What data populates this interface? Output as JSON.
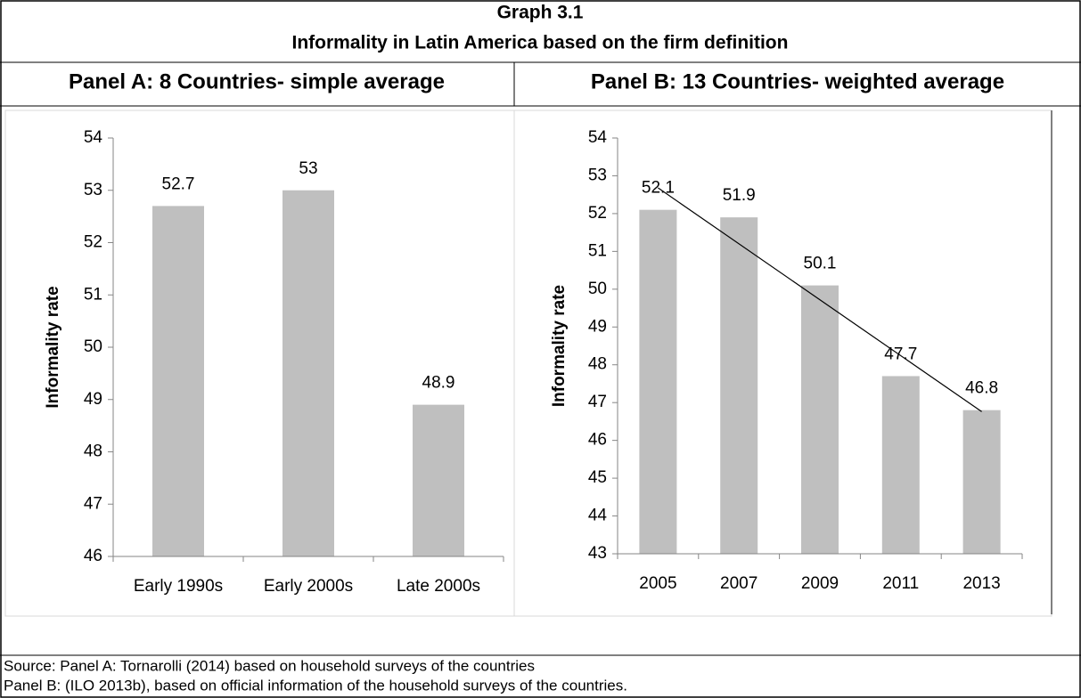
{
  "title": "Graph 3.1",
  "subtitle": "Informality in Latin America based on the firm definition",
  "chart_data": [
    {
      "type": "bar",
      "title": "Panel A: 8 Countries- simple average",
      "ylabel": "Informality rate",
      "categories": [
        "Early 1990s",
        "Early 2000s",
        "Late 2000s"
      ],
      "values": [
        52.7,
        53,
        48.9
      ],
      "color": "#bfbfbf",
      "ylim": [
        46,
        54
      ],
      "yticks": [
        46,
        47,
        48,
        49,
        50,
        51,
        52,
        53,
        54
      ]
    },
    {
      "type": "bar",
      "title": "Panel B: 13 Countries- weighted average",
      "ylabel": "Informality rate",
      "categories": [
        "2005",
        "2007",
        "2009",
        "2011",
        "2013"
      ],
      "values": [
        52.1,
        51.9,
        50.1,
        47.7,
        46.8
      ],
      "color": "#bfbfbf",
      "ylim": [
        43,
        54
      ],
      "yticks": [
        43,
        44,
        45,
        46,
        47,
        48,
        49,
        50,
        51,
        52,
        53,
        54
      ],
      "trendline": "linear"
    }
  ],
  "source": [
    "Source: Panel A: Tornarolli (2014) based on household surveys of the countries",
    "Panel B: (ILO 2013b), based on official information of the household surveys of the countries."
  ]
}
